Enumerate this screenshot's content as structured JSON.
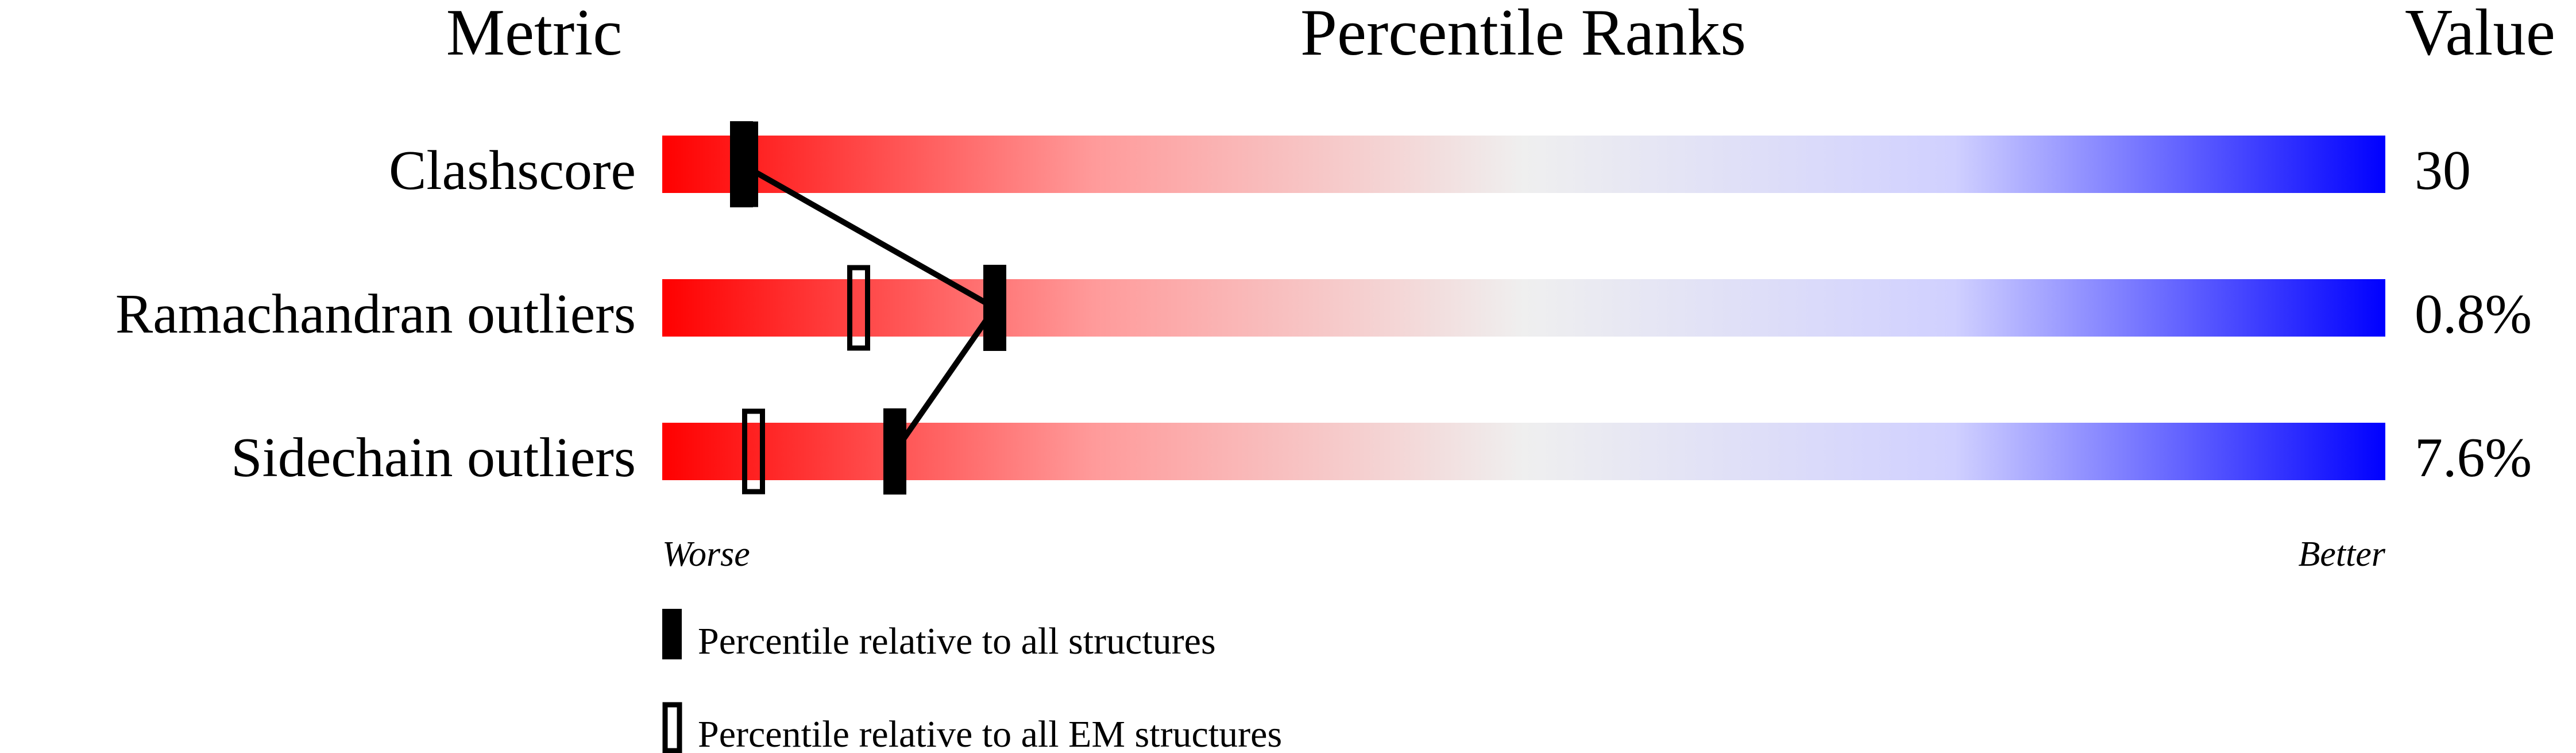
{
  "chart_data": {
    "type": "bar",
    "headers": {
      "metric": "Metric",
      "ranks": "Percentile Ranks",
      "value": "Value"
    },
    "metrics": [
      {
        "name": "Clashscore",
        "value": "30",
        "percentile_all": 4.6,
        "percentile_em": 4.9
      },
      {
        "name": "Ramachandran outliers",
        "value": "0.8%",
        "percentile_all": 19.3,
        "percentile_em": 11.4
      },
      {
        "name": "Sidechain outliers",
        "value": "7.6%",
        "percentile_all": 13.5,
        "percentile_em": 5.3
      }
    ],
    "xlim": [
      0,
      100
    ],
    "axis_labels": {
      "left": "Worse",
      "right": "Better"
    },
    "legend": {
      "all": "Percentile relative to all structures",
      "em": "Percentile relative to all EM structures"
    },
    "colors": {
      "worse": "#ff0000",
      "middle": "#efefef",
      "better": "#0000ff",
      "marker": "#000000"
    }
  }
}
